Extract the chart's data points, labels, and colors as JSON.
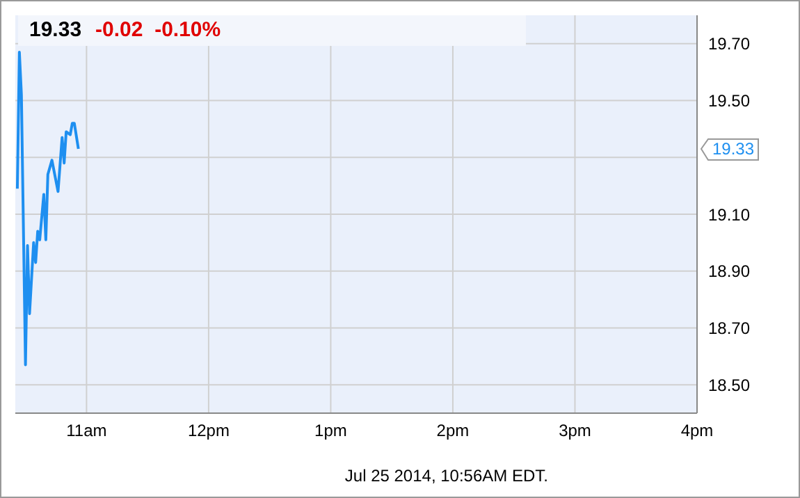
{
  "chart_data": {
    "type": "line",
    "title": "19.33",
    "subtitle": "-0.02  -0.10%",
    "x": [
      "2014-07-25T10:26",
      "2014-07-25T10:27",
      "2014-07-25T10:28",
      "2014-07-25T10:30",
      "2014-07-25T10:31",
      "2014-07-25T10:32",
      "2014-07-25T10:34",
      "2014-07-25T10:35",
      "2014-07-25T10:36",
      "2014-07-25T10:37",
      "2014-07-25T10:39",
      "2014-07-25T10:40",
      "2014-07-25T10:41",
      "2014-07-25T10:43",
      "2014-07-25T10:46",
      "2014-07-25T10:48",
      "2014-07-25T10:49",
      "2014-07-25T10:50",
      "2014-07-25T10:52",
      "2014-07-25T10:53",
      "2014-07-25T10:54",
      "2014-07-25T10:56"
    ],
    "series": [
      {
        "color": "#1e8ff0",
        "values": [
          19.19,
          19.67,
          19.52,
          18.57,
          18.99,
          18.75,
          19.0,
          18.93,
          19.04,
          19.01,
          19.17,
          19.01,
          19.24,
          19.29,
          19.18,
          19.37,
          19.28,
          19.39,
          19.38,
          19.42,
          19.42,
          19.33
        ]
      }
    ],
    "xlim": [
      "2014-07-25T10:25",
      "2014-07-25T16:00"
    ],
    "xticks": [
      {
        "value": "2014-07-25T11:00",
        "label": "11am"
      },
      {
        "value": "2014-07-25T12:00",
        "label": "12pm"
      },
      {
        "value": "2014-07-25T13:00",
        "label": "1pm"
      },
      {
        "value": "2014-07-25T14:00",
        "label": "2pm"
      },
      {
        "value": "2014-07-25T15:00",
        "label": "3pm"
      },
      {
        "value": "2014-07-25T16:00",
        "label": "4pm"
      }
    ],
    "ylim": [
      18.4,
      19.8
    ],
    "yticks": [
      {
        "value": 18.5,
        "label": "18.50"
      },
      {
        "value": 18.7,
        "label": "18.70"
      },
      {
        "value": 18.9,
        "label": "18.90"
      },
      {
        "value": 19.1,
        "label": "19.10"
      },
      {
        "value": 19.3,
        "label": null
      },
      {
        "value": 19.5,
        "label": "19.50"
      },
      {
        "value": 19.7,
        "label": "19.70"
      }
    ],
    "grid": true,
    "marker": "none",
    "line_style": "solid",
    "annotations": [
      "19.33",
      "Jul 25 2014, 10:56AM EDT."
    ]
  }
}
